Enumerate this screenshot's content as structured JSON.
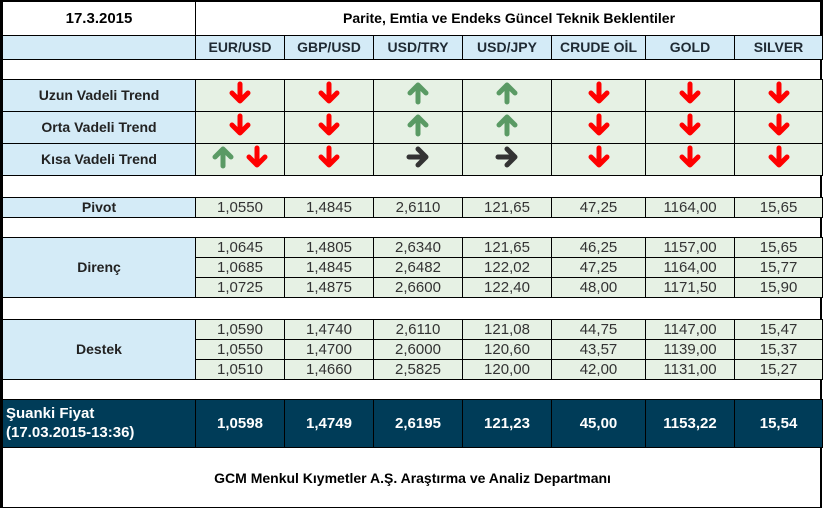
{
  "header": {
    "date": "17.3.2015",
    "title": "Parite, Emtia ve Endeks Güncel Teknik Beklentiler"
  },
  "columns": [
    "EUR/USD",
    "GBP/USD",
    "USD/TRY",
    "USD/JPY",
    "CRUDE OİL",
    "GOLD",
    "SILVER"
  ],
  "colors": {
    "up": "#5a9a64",
    "down": "#ff0000",
    "neutral": "#333333",
    "header_bg": "#d4ebf7",
    "cell_bg": "#e6f1e4",
    "current_bg": "#003c58"
  },
  "trends": [
    {
      "label": "Uzun Vadeli Trend",
      "values": [
        [
          "down-arrow-icon"
        ],
        [
          "down-arrow-icon"
        ],
        [
          "up-arrow-icon"
        ],
        [
          "up-arrow-icon"
        ],
        [
          "down-arrow-icon"
        ],
        [
          "down-arrow-icon"
        ],
        [
          "down-arrow-icon"
        ]
      ]
    },
    {
      "label": "Orta Vadeli Trend",
      "values": [
        [
          "down-arrow-icon"
        ],
        [
          "down-arrow-icon"
        ],
        [
          "up-arrow-icon"
        ],
        [
          "up-arrow-icon"
        ],
        [
          "down-arrow-icon"
        ],
        [
          "down-arrow-icon"
        ],
        [
          "down-arrow-icon"
        ]
      ]
    },
    {
      "label": "Kısa Vadeli Trend",
      "values": [
        [
          "up-arrow-icon",
          "down-arrow-icon"
        ],
        [
          "down-arrow-icon"
        ],
        [
          "right-arrow-icon"
        ],
        [
          "right-arrow-icon"
        ],
        [
          "down-arrow-icon"
        ],
        [
          "down-arrow-icon"
        ],
        [
          "down-arrow-icon"
        ]
      ]
    }
  ],
  "pivot": {
    "label": "Pivot",
    "values": [
      "1,0550",
      "1,4845",
      "2,6110",
      "121,65",
      "47,25",
      "1164,00",
      "15,65"
    ]
  },
  "direnc": {
    "label": "Direnç",
    "rows": [
      [
        "1,0645",
        "1,4805",
        "2,6340",
        "121,65",
        "46,25",
        "1157,00",
        "15,65"
      ],
      [
        "1,0685",
        "1,4845",
        "2,6482",
        "122,02",
        "47,25",
        "1164,00",
        "15,77"
      ],
      [
        "1,0725",
        "1,4875",
        "2,6600",
        "122,40",
        "48,00",
        "1171,50",
        "15,90"
      ]
    ]
  },
  "destek": {
    "label": "Destek",
    "rows": [
      [
        "1,0590",
        "1,4740",
        "2,6110",
        "121,08",
        "44,75",
        "1147,00",
        "15,47"
      ],
      [
        "1,0550",
        "1,4700",
        "2,6000",
        "120,60",
        "43,57",
        "1139,00",
        "15,37"
      ],
      [
        "1,0510",
        "1,4660",
        "2,5825",
        "120,00",
        "42,00",
        "1131,00",
        "15,27"
      ]
    ]
  },
  "current": {
    "label_line1": "Şuanki Fiyat",
    "label_line2": "(17.03.2015-13:36)",
    "values": [
      "1,0598",
      "1,4749",
      "2,6195",
      "121,23",
      "45,00",
      "1153,22",
      "15,54"
    ]
  },
  "footer": {
    "text": "GCM Menkul Kıymetler A.Ş. Araştırma ve Analiz Departmanı"
  }
}
